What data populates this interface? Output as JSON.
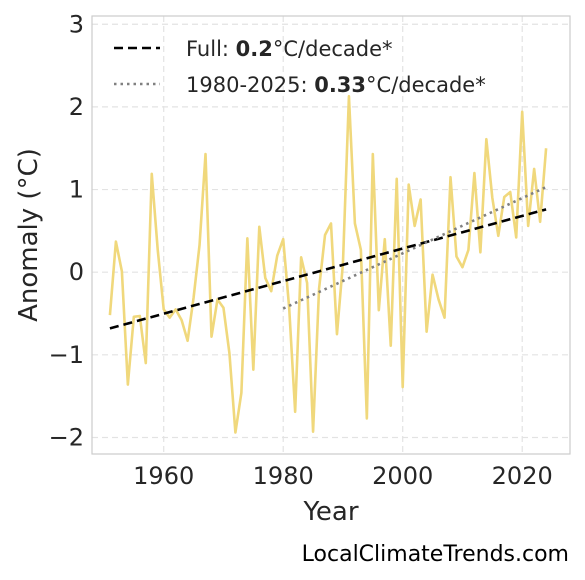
{
  "chart_data": {
    "type": "line",
    "xlabel": "Year",
    "ylabel": "Anomaly (°C)",
    "xlim": [
      1948,
      2028
    ],
    "ylim": [
      -2.2,
      3.1
    ],
    "x_ticks": [
      1960,
      1980,
      2000,
      2020
    ],
    "y_ticks": [
      -2,
      -1,
      0,
      1,
      2,
      3
    ],
    "y_tick_labels": [
      "−2",
      "−1",
      "0",
      "1",
      "2",
      "3"
    ],
    "grid": true,
    "legend_position": "top-left",
    "source": "LocalClimateTrends.com",
    "series": [
      {
        "style": "solid",
        "color": "#f0d87c",
        "x": [
          1951,
          1952,
          1953,
          1954,
          1955,
          1956,
          1957,
          1958,
          1959,
          1960,
          1961,
          1962,
          1963,
          1964,
          1965,
          1966,
          1967,
          1968,
          1969,
          1970,
          1971,
          1972,
          1973,
          1974,
          1975,
          1976,
          1977,
          1978,
          1979,
          1980,
          1981,
          1982,
          1983,
          1984,
          1985,
          1986,
          1987,
          1988,
          1989,
          1990,
          1991,
          1992,
          1993,
          1994,
          1995,
          1996,
          1997,
          1998,
          1999,
          2000,
          2001,
          2002,
          2003,
          2004,
          2005,
          2006,
          2007,
          2008,
          2009,
          2010,
          2011,
          2012,
          2013,
          2014,
          2015,
          2016,
          2017,
          2018,
          2019,
          2020,
          2021,
          2022,
          2023,
          2024
        ],
        "values": [
          -0.52,
          0.37,
          0.01,
          -1.36,
          -0.54,
          -0.53,
          -1.1,
          1.19,
          0.27,
          -0.45,
          -0.55,
          -0.45,
          -0.58,
          -0.83,
          -0.31,
          0.33,
          1.43,
          -0.78,
          -0.33,
          -0.43,
          -0.98,
          -1.94,
          -1.46,
          0.41,
          -1.18,
          0.55,
          -0.07,
          -0.23,
          0.2,
          0.4,
          -0.43,
          -1.69,
          0.18,
          -0.13,
          -1.93,
          -0.2,
          0.45,
          0.59,
          -0.75,
          0.11,
          2.13,
          0.59,
          0.27,
          -1.77,
          1.43,
          -0.46,
          0.4,
          -0.89,
          1.13,
          -1.39,
          1.06,
          0.56,
          0.88,
          -0.72,
          -0.03,
          -0.33,
          -0.55,
          1.15,
          0.19,
          0.06,
          0.27,
          1.2,
          0.24,
          1.61,
          0.9,
          0.44,
          0.91,
          0.97,
          0.42,
          1.94,
          0.56,
          1.25,
          0.61,
          1.5
        ]
      },
      {
        "name": "Full: ",
        "rate": "0.2",
        "unit": "°C/decade*",
        "style": "dashed",
        "color": "#000000",
        "x": [
          1951,
          2024
        ],
        "values": [
          -0.68,
          0.76
        ]
      },
      {
        "name": "1980-2025: ",
        "rate": "0.33",
        "unit": "°C/decade*",
        "style": "dotted",
        "color": "#808080",
        "x": [
          1980,
          2024
        ],
        "values": [
          -0.44,
          1.03
        ]
      }
    ]
  }
}
